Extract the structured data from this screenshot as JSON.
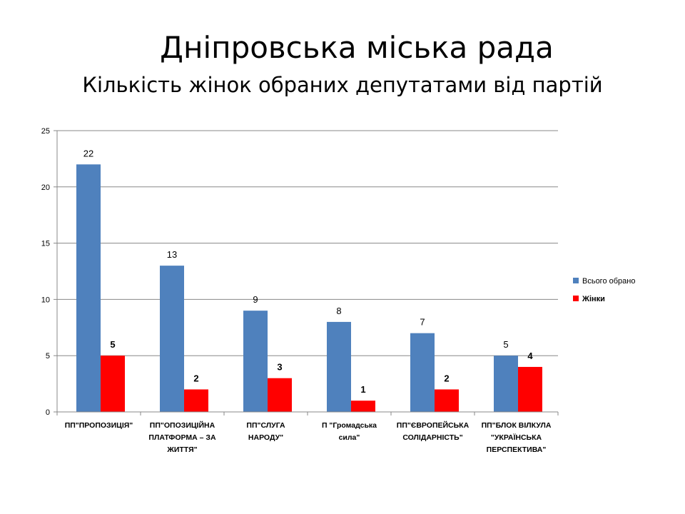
{
  "title": "Дніпровська міська рада",
  "subtitle": "Кількість жінок обраних депутатами від партій",
  "chart_data": {
    "type": "bar",
    "title": "Дніпровська міська рада",
    "subtitle": "Кількість жінок обраних депутатами від партій",
    "categories": [
      [
        "ПП\"ПРОПОЗИЦІЯ\""
      ],
      [
        "ПП\"ОПОЗИЦІЙНА",
        "ПЛАТФОРМА  – ЗА",
        "ЖИТТЯ\""
      ],
      [
        "ПП\"СЛУГА",
        "НАРОДУ\""
      ],
      [
        "П \"Громадська",
        "сила\""
      ],
      [
        "ПП\"ЄВРОПЕЙСЬКА",
        "СОЛІДАРНІСТЬ\""
      ],
      [
        "ПП\"БЛОК ВІЛКУЛА",
        "\"УКРАЇНСЬКА",
        "ПЕРСПЕКТИВА\""
      ]
    ],
    "series": [
      {
        "name": "Всього обрано",
        "color": "#4f81bd",
        "values": [
          22,
          13,
          9,
          8,
          7,
          5
        ]
      },
      {
        "name": "Жінки",
        "color": "#ff0000",
        "values": [
          5,
          2,
          3,
          1,
          2,
          4
        ]
      }
    ],
    "ylim": [
      0,
      25
    ],
    "yticks": [
      0,
      5,
      10,
      15,
      20,
      25
    ],
    "grid": true,
    "legend": "right",
    "xlabel": "",
    "ylabel": ""
  }
}
